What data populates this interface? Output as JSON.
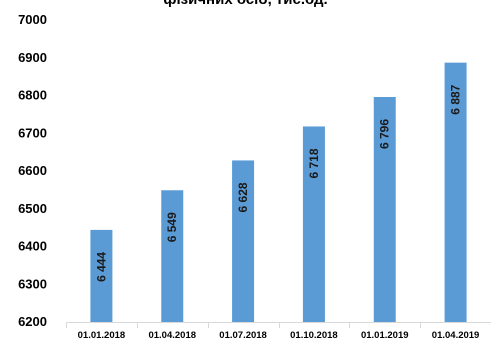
{
  "chart_data": {
    "type": "bar",
    "title": "фізичних осіб, тис.од.",
    "categories": [
      "01.01.2018",
      "01.04.2018",
      "01.07.2018",
      "01.10.2018",
      "01.01.2019",
      "01.04.2019"
    ],
    "values": [
      6444,
      6549,
      6628,
      6718,
      6796,
      6887
    ],
    "data_labels": [
      "6 444",
      "6 549",
      "6 628",
      "6 718",
      "6 796",
      "6 887"
    ],
    "y_ticks": [
      6200,
      6300,
      6400,
      6500,
      6600,
      6700,
      6800,
      6900,
      7000
    ],
    "ylim": [
      6200,
      7000
    ],
    "xlabel": "",
    "ylabel": "",
    "grid": false,
    "legend": "none",
    "bar_color": "#5B9BD5"
  }
}
